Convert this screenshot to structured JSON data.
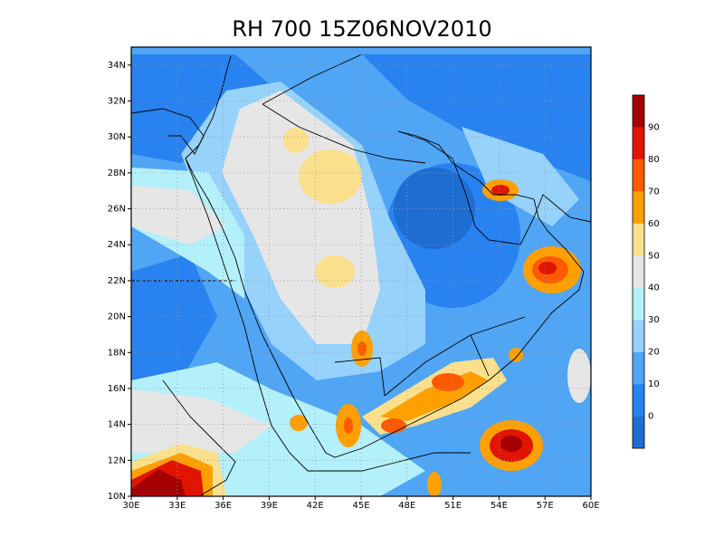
{
  "title": "RH 700 15Z06NOV2010",
  "map": {
    "xlim": [
      30,
      60
    ],
    "ylim": [
      10,
      35
    ],
    "lon_ticks": [
      {
        "value": 30,
        "label": "30E"
      },
      {
        "value": 33,
        "label": "33E"
      },
      {
        "value": 36,
        "label": "36E"
      },
      {
        "value": 39,
        "label": "39E"
      },
      {
        "value": 42,
        "label": "42E"
      },
      {
        "value": 45,
        "label": "45E"
      },
      {
        "value": 48,
        "label": "48E"
      },
      {
        "value": 51,
        "label": "51E"
      },
      {
        "value": 54,
        "label": "54E"
      },
      {
        "value": 57,
        "label": "57E"
      },
      {
        "value": 60,
        "label": "60E"
      }
    ],
    "lat_ticks": [
      {
        "value": 10,
        "label": "10N"
      },
      {
        "value": 12,
        "label": "12N"
      },
      {
        "value": 14,
        "label": "14N"
      },
      {
        "value": 16,
        "label": "16N"
      },
      {
        "value": 18,
        "label": "18N"
      },
      {
        "value": 20,
        "label": "20N"
      },
      {
        "value": 22,
        "label": "22N"
      },
      {
        "value": 24,
        "label": "24N"
      },
      {
        "value": 26,
        "label": "26N"
      },
      {
        "value": 28,
        "label": "28N"
      },
      {
        "value": 30,
        "label": "30N"
      },
      {
        "value": 32,
        "label": "32N"
      },
      {
        "value": 34,
        "label": "34N"
      }
    ],
    "grid": true
  },
  "colorbar": {
    "levels": [
      0,
      10,
      20,
      30,
      40,
      50,
      60,
      70,
      80,
      90
    ],
    "colors": [
      "#1e6ed2",
      "#2882f0",
      "#50a5f5",
      "#96d2fa",
      "#b4f0fa",
      "#e6e6e6",
      "#fae08c",
      "#ffa000",
      "#ff5a00",
      "#e11400",
      "#a50000"
    ]
  }
}
